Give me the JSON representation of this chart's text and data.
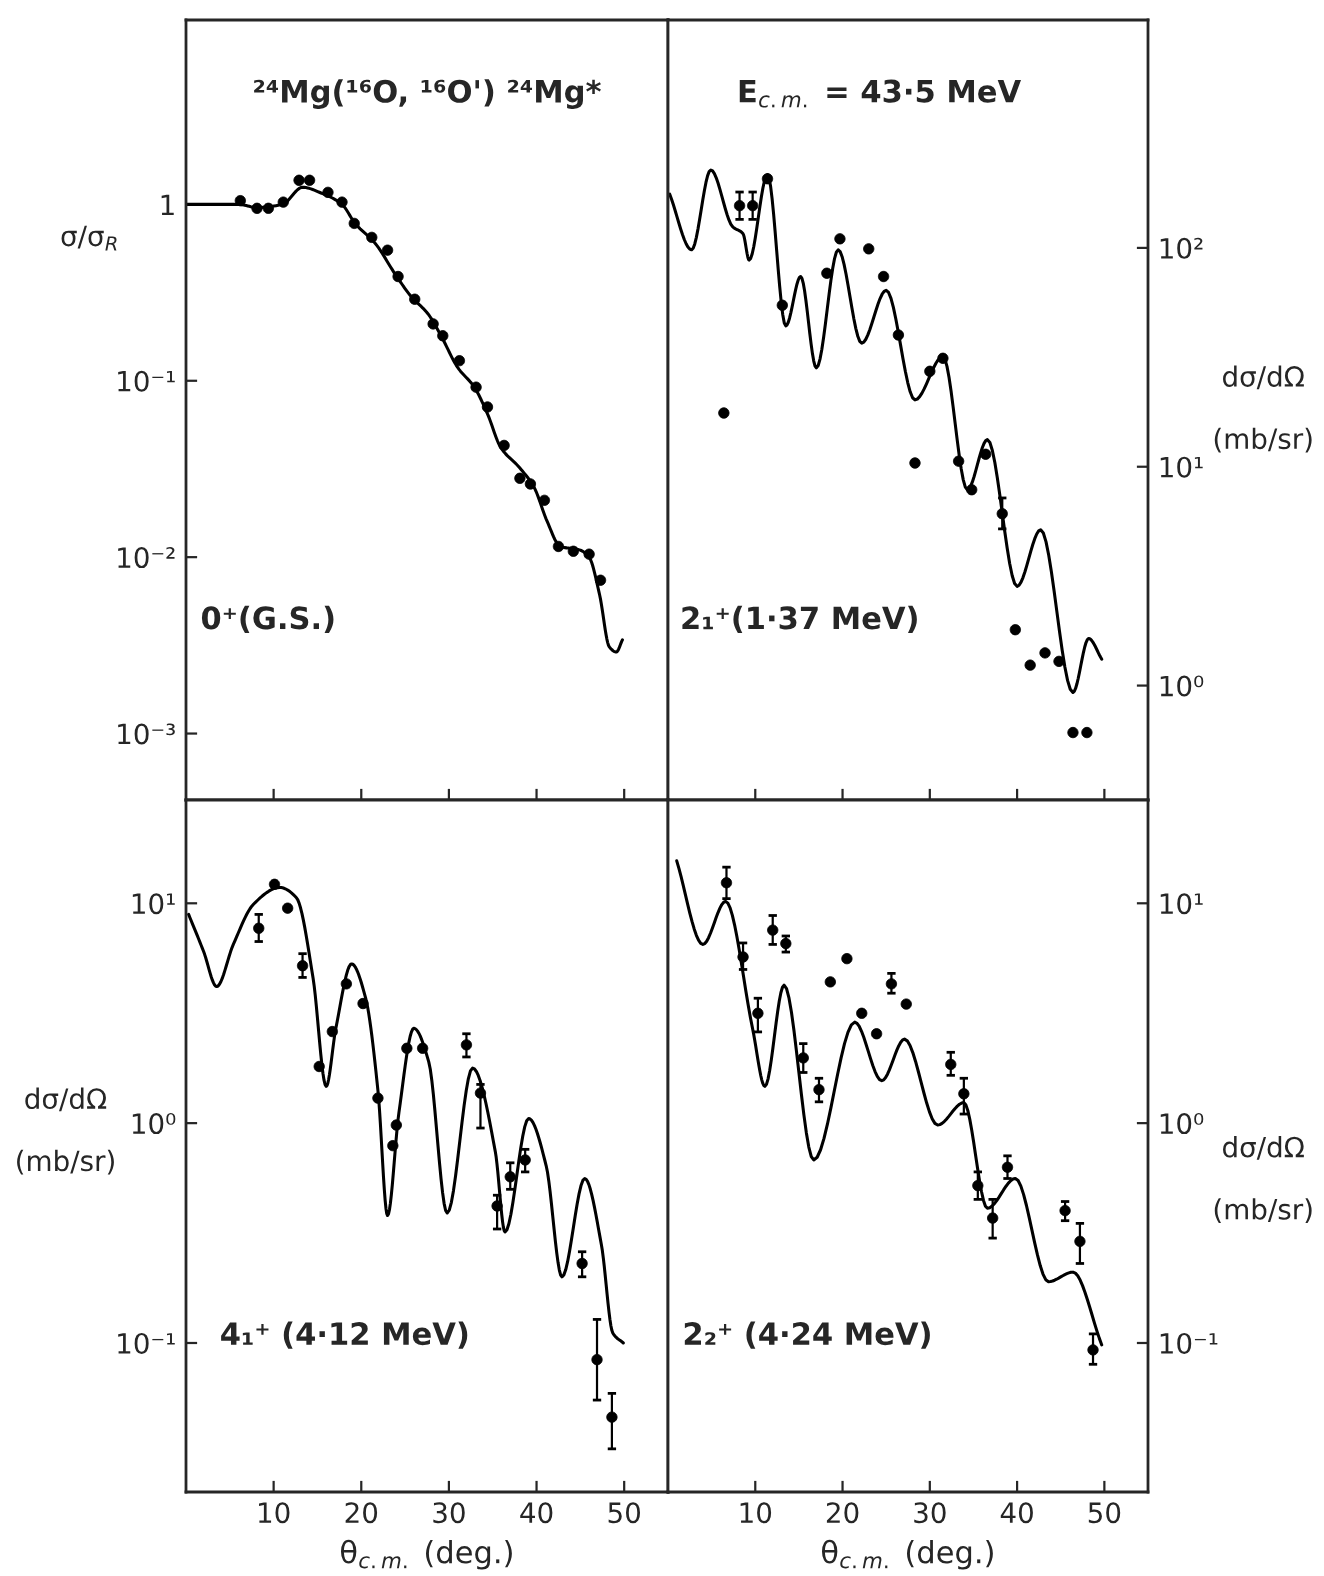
{
  "chart_data": [
    {
      "type": "scatter",
      "log": true,
      "ylabel": "σ/σ$_{R}$",
      "xlim": [
        0,
        55
      ],
      "xticks": [
        10,
        20,
        30,
        40,
        50
      ],
      "ylim": [
        0.00042,
        11.1
      ],
      "yticks": [
        {
          "value": 1,
          "label": "1"
        },
        {
          "value": 0.1,
          "label": "10⁻¹"
        },
        {
          "value": 0.01,
          "label": "10⁻²"
        },
        {
          "value": 0.001,
          "label": "10⁻³"
        }
      ],
      "tick_labels": "y",
      "annotations": [
        "²⁴Mg(¹⁶O, ¹⁶O') ²⁴Mg*",
        "0⁺(G.S.)"
      ],
      "series": [
        {
          "color": "#000000",
          "marker": "circle",
          "x": [
            6.2,
            8.1,
            9.4,
            11.1,
            12.9,
            14.1,
            16.2,
            17.8,
            19.2,
            21.2,
            23.0,
            24.2,
            26.1,
            28.2,
            29.3,
            31.2,
            33.1,
            34.4,
            36.3,
            38.1,
            39.3,
            40.9,
            42.5,
            44.2,
            46.0,
            47.3
          ],
          "values": [
            1.05,
            0.95,
            0.95,
            1.03,
            1.37,
            1.37,
            1.17,
            1.03,
            0.78,
            0.65,
            0.55,
            0.39,
            0.29,
            0.21,
            0.18,
            0.13,
            0.092,
            0.071,
            0.043,
            0.028,
            0.026,
            0.021,
            0.0115,
            0.0108,
            0.0104,
            0.0074
          ]
        },
        {
          "type": "line",
          "color": "#000000",
          "x": [
            0,
            6.0,
            8.1,
            11.0,
            13.3,
            15.6,
            17.8,
            19.3,
            21.6,
            23.9,
            25.7,
            27.6,
            29.1,
            31.0,
            32.9,
            34.4,
            35.9,
            38.1,
            39.7,
            41.2,
            42.7,
            44.9,
            46.0,
            47.2,
            48.3,
            49.1,
            49.8
          ],
          "values": [
            1.0,
            1.0,
            0.96,
            1.0,
            1.25,
            1.15,
            1.0,
            0.78,
            0.6,
            0.4,
            0.3,
            0.24,
            0.18,
            0.119,
            0.092,
            0.065,
            0.042,
            0.032,
            0.025,
            0.016,
            0.0115,
            0.011,
            0.01,
            0.0061,
            0.0031,
            0.0029,
            0.0034
          ]
        }
      ]
    },
    {
      "type": "scatter",
      "log": true,
      "ylabel": "dσ/dΩ\n\n(mb/sr)",
      "xlim": [
        0,
        55
      ],
      "xticks": [
        10,
        20,
        30,
        40,
        50
      ],
      "ylim": [
        0.3,
        1100
      ],
      "yticks": [
        {
          "value": 100,
          "label": "10²"
        },
        {
          "value": 10,
          "label": "10¹"
        },
        {
          "value": 1,
          "label": "10⁰"
        }
      ],
      "tick_labels": "y",
      "annotations": [
        "E$_{c.m.}$ = 43·5 MeV",
        "2₁⁺(1·37 MeV)"
      ],
      "series": [
        {
          "color": "#000000",
          "marker": "circle",
          "x": [
            6.4,
            8.2,
            9.7,
            11.4,
            13.1,
            18.2,
            19.7,
            23.0,
            24.7,
            26.4,
            28.3,
            30.0,
            31.5,
            33.3,
            34.8,
            36.4,
            38.3,
            39.8,
            41.5,
            43.2,
            44.8,
            46.4,
            48.0
          ],
          "values": [
            17.6,
            156,
            156,
            207,
            54.7,
            76.6,
            110,
            99,
            74,
            40,
            10.4,
            27.3,
            31.3,
            10.6,
            7.85,
            11.4,
            6.1,
            1.8,
            1.24,
            1.41,
            1.29,
            0.61,
            0.61
          ],
          "errors": [
            null,
            [
              135,
              180
            ],
            [
              135,
              180
            ],
            null,
            null,
            null,
            null,
            null,
            null,
            null,
            null,
            null,
            null,
            null,
            null,
            null,
            [
              5.2,
              7.2
            ],
            null,
            null,
            null,
            null,
            null,
            null
          ]
        },
        {
          "type": "line",
          "color": "#000000",
          "x": [
            0.2,
            2.7,
            4.9,
            7.4,
            8.6,
            9.3,
            11.4,
            13.5,
            15.2,
            17.0,
            19.5,
            22.2,
            25.0,
            28.3,
            31.5,
            34.3,
            36.6,
            40.0,
            42.7,
            46.4,
            48.2,
            49.7
          ],
          "values": [
            176,
            98,
            227,
            125,
            116,
            88,
            216,
            44,
            74,
            28.3,
            98,
            36.7,
            64,
            20.2,
            31.9,
            7.85,
            13.3,
            2.84,
            5.15,
            0.93,
            1.64,
            1.32
          ]
        }
      ]
    },
    {
      "type": "scatter",
      "log": true,
      "xlabel": "θ$_{c.m.}$ (deg.)",
      "ylabel": "dσ/dΩ\n\n(mb/sr)",
      "xlim": [
        0,
        55
      ],
      "xticks": [
        10,
        20,
        30,
        40,
        50
      ],
      "ylim": [
        0.021,
        29.5
      ],
      "yticks": [
        {
          "value": 10,
          "label": "10¹"
        },
        {
          "value": 1,
          "label": "10⁰"
        },
        {
          "value": 0.1,
          "label": "10⁻¹"
        }
      ],
      "annotations": [
        "4₁⁺ (4·12 MeV)"
      ],
      "series": [
        {
          "color": "#000000",
          "marker": "circle",
          "x": [
            8.3,
            10.1,
            11.6,
            13.3,
            15.2,
            16.7,
            18.3,
            20.2,
            21.9,
            23.6,
            24.0,
            25.2,
            27.0,
            32.0,
            33.6,
            35.5,
            37.0,
            38.7,
            45.2,
            46.9,
            48.6
          ],
          "values": [
            7.7,
            12.2,
            9.5,
            5.2,
            1.81,
            2.61,
            4.3,
            3.5,
            1.3,
            0.79,
            0.98,
            2.19,
            2.19,
            2.27,
            1.37,
            0.42,
            0.57,
            0.68,
            0.23,
            0.084,
            0.046
          ],
          "errors": [
            [
              6.7,
              8.9
            ],
            null,
            null,
            [
              4.6,
              5.9
            ],
            null,
            null,
            null,
            null,
            null,
            null,
            null,
            null,
            null,
            [
              2.0,
              2.55
            ],
            [
              0.95,
              1.5
            ],
            [
              0.33,
              0.47
            ],
            [
              0.5,
              0.66
            ],
            [
              0.6,
              0.76
            ],
            [
              0.2,
              0.26
            ],
            [
              0.055,
              0.128
            ],
            [
              0.033,
              0.059
            ]
          ]
        },
        {
          "type": "line",
          "color": "#000000",
          "x": [
            0.3,
            2.0,
            3.5,
            5.4,
            7.7,
            10.7,
            12.6,
            14.5,
            16.0,
            17.1,
            18.9,
            20.5,
            21.9,
            23.0,
            24.3,
            26.0,
            27.7,
            29.8,
            32.7,
            35.3,
            36.4,
            39.1,
            41.1,
            42.9,
            45.5,
            47.4,
            48.7,
            49.9
          ],
          "values": [
            8.9,
            6.05,
            4.18,
            6.5,
            9.9,
            11.8,
            10.6,
            4.57,
            1.47,
            2.7,
            5.3,
            3.7,
            1.41,
            0.38,
            1.12,
            2.7,
            1.9,
            0.39,
            1.78,
            0.74,
            0.32,
            1.05,
            0.64,
            0.2,
            0.56,
            0.28,
            0.111,
            0.1
          ]
        }
      ]
    },
    {
      "type": "scatter",
      "log": true,
      "xlabel": "θ$_{c.m.}$ (deg.)",
      "ylabel": "dσ/dΩ\n\n(mb/sr)",
      "xlim": [
        0,
        55
      ],
      "xticks": [
        10,
        20,
        30,
        40,
        50
      ],
      "ylim": [
        0.021,
        29.5
      ],
      "yticks": [
        {
          "value": 10,
          "label": "10¹"
        },
        {
          "value": 1,
          "label": "10⁰"
        },
        {
          "value": 0.1,
          "label": "10⁻¹"
        }
      ],
      "annotations": [
        "2₂⁺ (4·24 MeV)"
      ],
      "series": [
        {
          "color": "#000000",
          "marker": "circle",
          "x": [
            6.7,
            8.6,
            10.3,
            12.0,
            13.5,
            15.5,
            17.3,
            18.6,
            20.5,
            22.2,
            23.9,
            25.6,
            27.3,
            32.4,
            33.9,
            35.5,
            37.2,
            38.9,
            45.5,
            47.2,
            48.7
          ],
          "values": [
            12.4,
            5.7,
            3.16,
            7.55,
            6.56,
            1.98,
            1.42,
            4.39,
            5.6,
            3.16,
            2.55,
            4.3,
            3.48,
            1.85,
            1.36,
            0.52,
            0.37,
            0.63,
            0.4,
            0.29,
            0.093
          ],
          "errors": [
            [
              10.5,
              14.6
            ],
            [
              5.0,
              6.6
            ],
            [
              2.6,
              3.7
            ],
            [
              6.5,
              8.8
            ],
            [
              6.0,
              7.1
            ],
            [
              1.7,
              2.3
            ],
            [
              1.25,
              1.6
            ],
            null,
            null,
            null,
            null,
            [
              3.9,
              4.8
            ],
            null,
            [
              1.65,
              2.1
            ],
            [
              1.1,
              1.6
            ],
            [
              0.45,
              0.6
            ],
            [
              0.3,
              0.45
            ],
            [
              0.56,
              0.71
            ],
            [
              0.36,
              0.44
            ],
            [
              0.23,
              0.35
            ],
            [
              0.08,
              0.11
            ]
          ]
        },
        {
          "type": "line",
          "color": "#000000",
          "x": [
            1.0,
            4.0,
            6.6,
            9.7,
            11.1,
            13.3,
            16.7,
            21.4,
            24.5,
            27.1,
            30.9,
            33.9,
            36.6,
            39.8,
            43.6,
            46.4,
            49.7
          ],
          "values": [
            15.6,
            6.5,
            10.2,
            2.68,
            1.47,
            4.24,
            0.68,
            2.88,
            1.56,
            2.41,
            0.98,
            1.24,
            0.41,
            0.56,
            0.19,
            0.21,
            0.098
          ]
        }
      ]
    }
  ]
}
